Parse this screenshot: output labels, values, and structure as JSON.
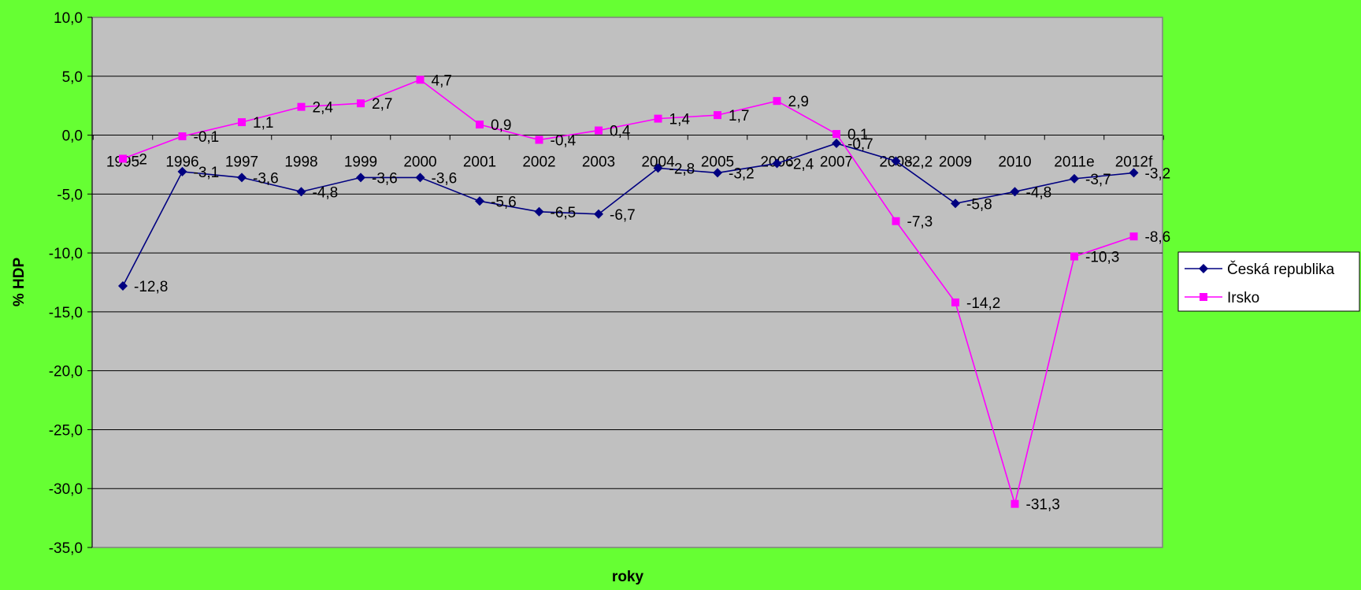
{
  "chart_data": {
    "type": "line",
    "categories": [
      "1995",
      "1996",
      "1997",
      "1998",
      "1999",
      "2000",
      "2001",
      "2002",
      "2003",
      "2004",
      "2005",
      "2006",
      "2007",
      "2008",
      "2009",
      "2010",
      "2011e",
      "2012f"
    ],
    "series": [
      {
        "name": "Česká republika",
        "color": "#000080",
        "marker": "diamond",
        "values": [
          -12.8,
          -3.1,
          -3.6,
          -4.8,
          -3.6,
          -3.6,
          -5.6,
          -6.5,
          -6.7,
          -2.8,
          -3.2,
          -2.4,
          -0.7,
          -2.2,
          -5.8,
          -4.8,
          -3.7,
          -3.2
        ],
        "labels": [
          "-12,8",
          "-3,1",
          "-3,6",
          "-4,8",
          "-3,6",
          "-3,6",
          "-5,6",
          "-6,5",
          "-6,7",
          "-2,8",
          "-3,2",
          "-2,4",
          "-0,7",
          "-2,2",
          "-5,8",
          "-4,8",
          "-3,7",
          "-3,2"
        ]
      },
      {
        "name": "Irsko",
        "color": "#ff00ff",
        "marker": "square",
        "values": [
          -2.0,
          -0.1,
          1.1,
          2.4,
          2.7,
          4.7,
          0.9,
          -0.4,
          0.4,
          1.4,
          1.7,
          2.9,
          0.1,
          -7.3,
          -14.2,
          -31.3,
          -10.3,
          -8.6
        ],
        "labels": [
          "-2",
          "-0,1",
          "1,1",
          "2,4",
          "2,7",
          "4,7",
          "0,9",
          "-0,4",
          "0,4",
          "1,4",
          "1,7",
          "2,9",
          "0,1",
          "-7,3",
          "-14,2",
          "-31,3",
          "-10,3",
          "-8,6"
        ]
      }
    ],
    "ylim": [
      -35,
      10
    ],
    "yticks": [
      10,
      5,
      0,
      -5,
      -10,
      -15,
      -20,
      -25,
      -30,
      -35
    ],
    "ytick_labels": [
      "10,0",
      "5,0",
      "0,0",
      "-5,0",
      "-10,0",
      "-15,0",
      "-20,0",
      "-25,0",
      "-30,0",
      "-35,0"
    ],
    "xlabel": "roky",
    "ylabel": "% HDP",
    "title": "",
    "grid": true,
    "legend_position": "right",
    "plot_background": "#c0c0c0",
    "page_background": "#66ff33"
  }
}
